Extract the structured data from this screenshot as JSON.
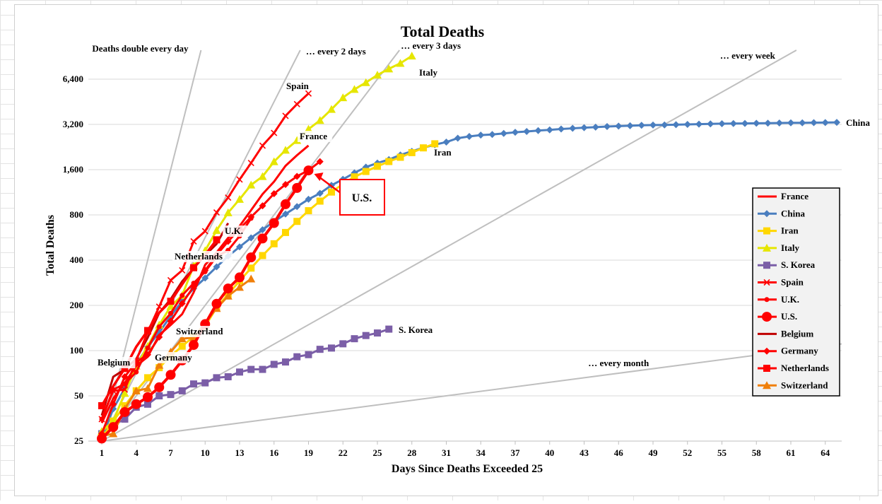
{
  "chart_data": {
    "type": "line",
    "title": "Total Deaths",
    "xlabel": "Days Since Deaths Exceeded 25",
    "ylabel": "Total Deaths",
    "yscale": "log2",
    "ylim": [
      25,
      10000
    ],
    "xlim": [
      1,
      65
    ],
    "x_ticks": [
      1,
      4,
      7,
      10,
      13,
      16,
      19,
      22,
      25,
      28,
      31,
      34,
      37,
      40,
      43,
      46,
      49,
      52,
      55,
      58,
      61,
      64
    ],
    "y_ticks": [
      25,
      50,
      100,
      200,
      400,
      800,
      1600,
      3200,
      6400
    ],
    "y_tick_labels": [
      "25",
      "50",
      "100",
      "200",
      "400",
      "800",
      "1,600",
      "3,200",
      "6,400"
    ],
    "grid": "horizontal",
    "legend_position": "right",
    "reference_lines": [
      {
        "label": "Deaths double every day",
        "doubling_days": 1
      },
      {
        "label": "… every 2 days",
        "doubling_days": 2
      },
      {
        "label": "… every 3 days",
        "doubling_days": 3
      },
      {
        "label": "… every week",
        "doubling_days": 7
      },
      {
        "label": "… every month",
        "doubling_days": 30
      }
    ],
    "series": [
      {
        "name": "France",
        "color": "#ff0000",
        "marker": "none",
        "label": "France",
        "values": [
          33,
          48,
          61,
          79,
          91,
          127,
          148,
          175,
          244,
          372,
          450,
          562,
          674,
          860,
          1100,
          1331,
          1696,
          1995,
          2314
        ]
      },
      {
        "name": "China",
        "color": "#4a7ebf",
        "marker": "diamond",
        "label": "China",
        "values": [
          26,
          41,
          56,
          81,
          106,
          132,
          170,
          213,
          259,
          304,
          361,
          425,
          490,
          563,
          637,
          722,
          811,
          908,
          1016,
          1113,
          1259,
          1380,
          1523,
          1665,
          1770,
          1868,
          2004,
          2118,
          2236,
          2345,
          2442,
          2592,
          2663,
          2715,
          2744,
          2788,
          2835,
          2870,
          2912,
          2943,
          2981,
          3013,
          3042,
          3070,
          3097,
          3119,
          3136,
          3158,
          3169,
          3176,
          3189,
          3199,
          3213,
          3226,
          3237,
          3245,
          3248,
          3255,
          3261,
          3270,
          3277,
          3281,
          3287,
          3292,
          3300
        ]
      },
      {
        "name": "Iran",
        "color": "#ffd700",
        "marker": "square",
        "label": "Iran",
        "values": [
          26,
          34,
          43,
          54,
          66,
          77,
          92,
          107,
          124,
          145,
          194,
          237,
          291,
          354,
          429,
          514,
          611,
          724,
          853,
          988,
          1135,
          1284,
          1433,
          1556,
          1685,
          1812,
          1934,
          2077,
          2234,
          2378
        ]
      },
      {
        "name": "Italy",
        "color": "#e6e600",
        "marker": "triangle",
        "label": "Italy",
        "values": [
          29,
          34,
          52,
          79,
          107,
          148,
          197,
          233,
          366,
          463,
          631,
          827,
          1016,
          1266,
          1441,
          1809,
          2158,
          2503,
          2978,
          3405,
          4032,
          4825,
          5476,
          6077,
          6820,
          7503,
          8165,
          9134
        ]
      },
      {
        "name": "S. Korea",
        "color": "#7b5ea7",
        "marker": "square",
        "label": "S. Korea",
        "values": [
          28,
          32,
          35,
          42,
          44,
          50,
          51,
          54,
          60,
          61,
          66,
          67,
          72,
          75,
          75,
          81,
          84,
          91,
          94,
          102,
          104,
          111,
          120,
          126,
          131,
          139
        ]
      },
      {
        "name": "Spain",
        "color": "#ff0000",
        "marker": "x",
        "label": "Spain",
        "values": [
          35,
          54,
          55,
          86,
          133,
          196,
          294,
          342,
          533,
          623,
          830,
          1043,
          1375,
          1772,
          2311,
          2808,
          3647,
          4365,
          5138
        ]
      },
      {
        "name": "U.K.",
        "color": "#ff0000",
        "marker": "dot",
        "label": "U.K.",
        "values": [
          35,
          55,
          60,
          72,
          104,
          144,
          177,
          233,
          281,
          335,
          422,
          465,
          578,
          759
        ]
      },
      {
        "name": "U.S.",
        "color": "#ff0000",
        "marker": "circle",
        "label": "U.S.",
        "values": [
          26,
          31,
          39,
          44,
          49,
          57,
          69,
          86,
          109,
          150,
          205,
          259,
          307,
          417,
          557,
          706,
          942,
          1209,
          1581
        ]
      },
      {
        "name": "Belgium",
        "color": "#c00000",
        "marker": "none",
        "label": "Belgium",
        "values": [
          37,
          67,
          75,
          88,
          122,
          178,
          220,
          289,
          353,
          431,
          513,
          705
        ]
      },
      {
        "name": "Germany",
        "color": "#ff0000",
        "marker": "diamond",
        "label": "Germany",
        "values": [
          28,
          44,
          67,
          84,
          94,
          123,
          157,
          206,
          267,
          342,
          433,
          533,
          645,
          775,
          920,
          1107,
          1275,
          1444,
          1584,
          1810
        ]
      },
      {
        "name": "Netherlands",
        "color": "#ff0000",
        "marker": "square",
        "label": "Netherlands",
        "values": [
          43,
          58,
          76,
          106,
          136,
          179,
          213,
          276,
          356,
          434,
          546
        ]
      },
      {
        "name": "Switzerland",
        "color": "#f07f09",
        "marker": "triangle",
        "label": "Switzerland",
        "values": [
          27,
          28,
          41,
          54,
          56,
          80,
          98,
          120,
          122,
          153,
          191,
          231,
          264,
          300
        ]
      }
    ],
    "annotations": [
      "Belgium",
      "Germany",
      "Switzerland",
      "Netherlands",
      "U.K.",
      "France",
      "Spain",
      "Italy",
      "Iran",
      "China",
      "S. Korea",
      "U.S."
    ],
    "callout": {
      "text": "U.S.",
      "color": "#ff0000"
    }
  }
}
